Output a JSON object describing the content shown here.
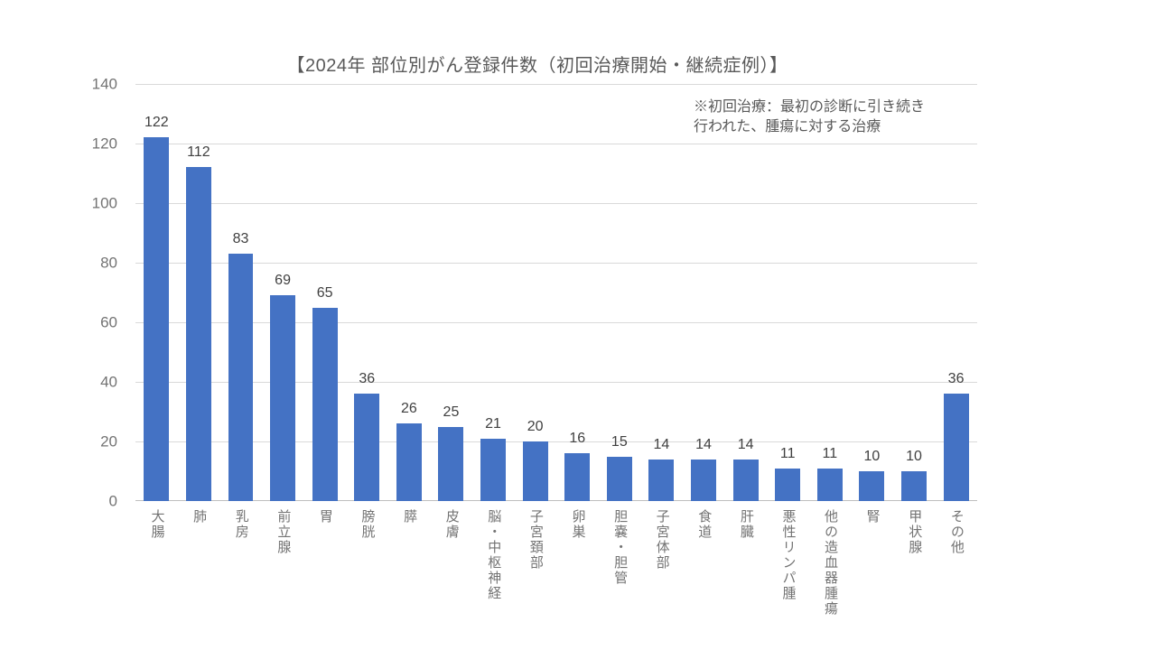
{
  "chart_data": {
    "type": "bar",
    "title": "【2024年 部位別がん登録件数（初回治療開始・継続症例）】",
    "annotation": "※初回治療：最初の診断に引き続き\n行われた、腫瘍に対する治療",
    "categories": [
      "大腸",
      "肺",
      "乳房",
      "前立腺",
      "胃",
      "膀胱",
      "膵",
      "皮膚",
      "脳・中枢神経",
      "子宮頚部",
      "卵巣",
      "胆嚢・胆管",
      "子宮体部",
      "食道",
      "肝臓",
      "悪性リンパ腫",
      "他の造血器腫瘍",
      "腎",
      "甲状腺",
      "その他"
    ],
    "values": [
      122,
      112,
      83,
      69,
      65,
      36,
      26,
      25,
      21,
      20,
      16,
      15,
      14,
      14,
      14,
      11,
      11,
      10,
      10,
      36
    ],
    "xlabel": "",
    "ylabel": "",
    "ylim": [
      0,
      140
    ],
    "yticks": [
      0,
      20,
      40,
      60,
      80,
      100,
      120,
      140
    ],
    "grid": "horizontal",
    "legend": "none",
    "colors": {
      "bar": "#4472C4",
      "gridline": "#D9D9D9",
      "axis_line": "#BFBFBF",
      "title_text": "#595959",
      "annotation_text": "#595959",
      "tick_text": "#737373",
      "category_text": "#737373",
      "data_label_text": "#404040",
      "background": "#FFFFFF"
    }
  }
}
